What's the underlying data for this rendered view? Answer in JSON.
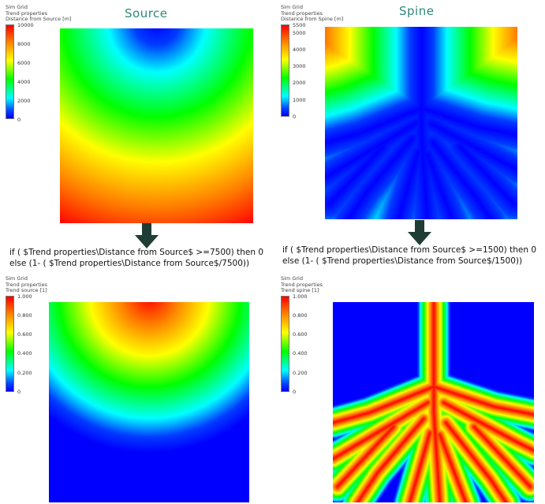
{
  "panels": {
    "source": {
      "title": "Source",
      "legend": {
        "line1": "Sim Grid",
        "line2": "Trend properties",
        "line3": "Distance from Source [m]",
        "ticks": [
          "10000",
          "8000",
          "6000",
          "4000",
          "2000",
          "0"
        ]
      }
    },
    "spine": {
      "title": "Spine",
      "legend": {
        "line1": "Sim Grid",
        "line2": "Trend properties",
        "line3": "Distance from Spine [m]",
        "ticks": [
          "5500",
          "5000",
          "4000",
          "3000",
          "2000",
          "1000",
          "0"
        ]
      }
    },
    "trend_source": {
      "legend": {
        "line1": "Sim Grid",
        "line2": "Trend properties",
        "line3": "Trend source [1]",
        "ticks": [
          "1.000",
          "0.800",
          "0.600",
          "0.400",
          "0.200",
          "0"
        ]
      }
    },
    "trend_spine": {
      "legend": {
        "line1": "Sim Grid",
        "line2": "Trend properties",
        "line3": "Trend spine [1]",
        "ticks": [
          "1.000",
          "0.800",
          "0.600",
          "0.400",
          "0.200",
          "0"
        ]
      }
    }
  },
  "formulas": {
    "left": {
      "line1": "if ( $Trend properties\\Distance from Source$ >=7500) then 0",
      "line2": "else (1- ( $Trend properties\\Distance from Source$/7500))"
    },
    "right": {
      "line1": "if ( $Trend properties\\Distance from Source$ >=1500) then 0",
      "line2": "else (1- ( $Trend properties\\Distance from Source$/1500))"
    }
  },
  "colors": {
    "title": "#2a8a7a",
    "arrow": "#1f3d34"
  }
}
